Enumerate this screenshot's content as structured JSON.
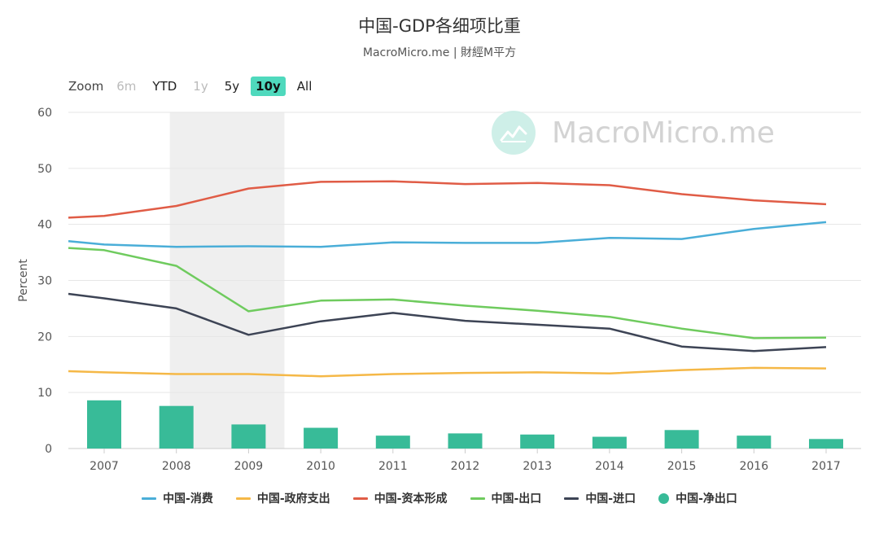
{
  "title": "中国-GDP各细项比重",
  "subtitle": "MacroMicro.me | 財經M平方",
  "zoom": {
    "label": "Zoom",
    "buttons": [
      {
        "label": "6m",
        "state": "disabled"
      },
      {
        "label": "YTD",
        "state": "normal"
      },
      {
        "label": "1y",
        "state": "disabled"
      },
      {
        "label": "5y",
        "state": "normal"
      },
      {
        "label": "10y",
        "state": "active"
      },
      {
        "label": "All",
        "state": "normal"
      }
    ]
  },
  "watermark": {
    "text": "MacroMicro.me",
    "icon": "chart-line-icon"
  },
  "chart_data": {
    "type": "line",
    "x": [
      "2007",
      "2008",
      "2009",
      "2010",
      "2011",
      "2012",
      "2013",
      "2014",
      "2015",
      "2016",
      "2017"
    ],
    "ylabel": "Percent",
    "ylim": [
      0,
      60
    ],
    "yticks": [
      "0",
      "10",
      "20",
      "30",
      "40",
      "50",
      "60"
    ],
    "grid": true,
    "legend_position": "bottom",
    "highlight_band": {
      "from": "2008",
      "to": "2009"
    },
    "series": [
      {
        "name": "中国-消费",
        "kind": "line",
        "color": "#4aaed8",
        "start": 37.0,
        "values": [
          36.4,
          36.0,
          36.1,
          36.0,
          36.8,
          36.7,
          36.7,
          37.6,
          37.4,
          39.2,
          40.4
        ]
      },
      {
        "name": "中国-政府支出",
        "kind": "line",
        "color": "#f5b847",
        "start": 13.8,
        "values": [
          13.6,
          13.3,
          13.3,
          12.9,
          13.3,
          13.5,
          13.6,
          13.4,
          14.0,
          14.4,
          14.3
        ]
      },
      {
        "name": "中国-资本形成",
        "kind": "line",
        "color": "#e05c46",
        "start": 41.2,
        "values": [
          41.5,
          43.3,
          46.4,
          47.6,
          47.7,
          47.2,
          47.4,
          47.0,
          45.4,
          44.3,
          43.6
        ]
      },
      {
        "name": "中国-出口",
        "kind": "line",
        "color": "#6fcb5e",
        "start": 35.8,
        "values": [
          35.4,
          32.6,
          24.5,
          26.4,
          26.6,
          25.5,
          24.6,
          23.5,
          21.4,
          19.7,
          19.8
        ]
      },
      {
        "name": "中国-进口",
        "kind": "line",
        "color": "#3d4455",
        "start": 27.6,
        "values": [
          26.8,
          25.0,
          20.3,
          22.7,
          24.2,
          22.8,
          22.1,
          21.4,
          18.2,
          17.4,
          18.1
        ]
      },
      {
        "name": "中国-净出口",
        "kind": "bar",
        "color": "#38bb98",
        "values": [
          8.6,
          7.6,
          4.3,
          3.7,
          2.3,
          2.7,
          2.5,
          2.1,
          3.3,
          2.3,
          1.7
        ]
      }
    ]
  }
}
